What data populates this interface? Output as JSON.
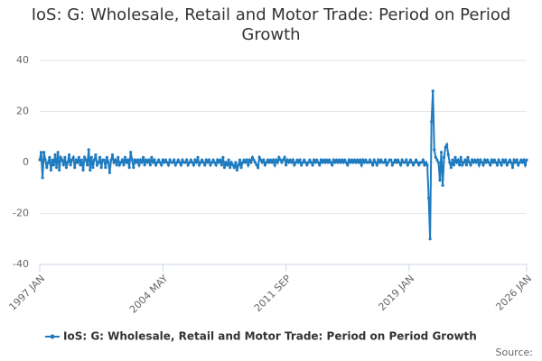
{
  "chart_data": {
    "type": "line",
    "title": "IoS: G: Wholesale, Retail and Motor Trade: Period on Period Growth",
    "source": "Source:",
    "categories": [
      "1997 JAN",
      null,
      null,
      null,
      null,
      null,
      null,
      null,
      null,
      null,
      null,
      null,
      null,
      null,
      null,
      null,
      null,
      null,
      null,
      null,
      null,
      null,
      null,
      null,
      null,
      null,
      null,
      null,
      null,
      null,
      null,
      null,
      null,
      null,
      null,
      null,
      null,
      null,
      null,
      null,
      null,
      null,
      null,
      null,
      null,
      null,
      null,
      null,
      null,
      null,
      null,
      null,
      null,
      null,
      null,
      null,
      null,
      null,
      null,
      null,
      null,
      null,
      null,
      null,
      null,
      null,
      null,
      null,
      null,
      null,
      null,
      null,
      null,
      null,
      null,
      null,
      null,
      null,
      null,
      null,
      null,
      null,
      null,
      null,
      null,
      null,
      null,
      null,
      "2004 MAY",
      null,
      null,
      null,
      null,
      null,
      null,
      null,
      null,
      null,
      null,
      null,
      null,
      null,
      null,
      null,
      null,
      null,
      null,
      null,
      null,
      null,
      null,
      null,
      null,
      null,
      null,
      null,
      null,
      null,
      null,
      null,
      null,
      null,
      null,
      null,
      null,
      null,
      null,
      null,
      null,
      null,
      null,
      null,
      null,
      null,
      null,
      null,
      null,
      null,
      null,
      null,
      null,
      null,
      null,
      null,
      null,
      null,
      null,
      null,
      null,
      null,
      null,
      null,
      null,
      null,
      null,
      null,
      null,
      null,
      null,
      null,
      null,
      null,
      null,
      null,
      null,
      null,
      null,
      null,
      null,
      null,
      null,
      null,
      null,
      null,
      null,
      null,
      "2011 SEP",
      null,
      null,
      null,
      null,
      null,
      null,
      null,
      null,
      null,
      null,
      null,
      null,
      null,
      null,
      null,
      null,
      null,
      null,
      null,
      null,
      null,
      null,
      null,
      null,
      null,
      null,
      null,
      null,
      null,
      null,
      null,
      null,
      null,
      null,
      null,
      null,
      null,
      null,
      null,
      null,
      null,
      null,
      null,
      null,
      null,
      null,
      null,
      null,
      null,
      null,
      null,
      null,
      null,
      null,
      null,
      null,
      null,
      null,
      null,
      null,
      null,
      null,
      null,
      null,
      null,
      null,
      null,
      null,
      null,
      null,
      null,
      null,
      null,
      null,
      null,
      null,
      null,
      null,
      null,
      null,
      null,
      null,
      null,
      null,
      null,
      null,
      null,
      "2019 JAN",
      null,
      null,
      null,
      null,
      null,
      null,
      null,
      null,
      null,
      null,
      null,
      null,
      null,
      null,
      null,
      null,
      null,
      null,
      null,
      null,
      null,
      null,
      null,
      null,
      null,
      null,
      null,
      null,
      null,
      null,
      null,
      null,
      null,
      null,
      null,
      null,
      null,
      null,
      null,
      null,
      null,
      null,
      null,
      null,
      null,
      null,
      null,
      null,
      null,
      null,
      null,
      null,
      null,
      null,
      null,
      null,
      null,
      null,
      null,
      null,
      null,
      null,
      null,
      null,
      null,
      null,
      null,
      null,
      null,
      null,
      null,
      null,
      null,
      null,
      null,
      null,
      null,
      null,
      null,
      null,
      null,
      null,
      null,
      "2026 JAN"
    ],
    "series": [
      {
        "name": "IoS: G: Wholesale, Retail and Motor Trade: Period on Period Growth",
        "color": "#1f7bbf",
        "values": [
          1,
          4,
          -6,
          4,
          1,
          -2,
          0,
          2,
          -3,
          1,
          -1,
          3,
          -2,
          4,
          -3,
          2,
          1,
          -1,
          2,
          -2,
          0,
          3,
          -1,
          1,
          2,
          -2,
          1,
          0,
          2,
          -1,
          1,
          -3,
          2,
          1,
          -1,
          5,
          -3,
          2,
          -2,
          1,
          3,
          -1,
          0,
          2,
          -2,
          1,
          1,
          -2,
          2,
          0,
          -4,
          1,
          3,
          0,
          1,
          -1,
          2,
          -1,
          0,
          1,
          -1,
          2,
          0,
          1,
          -2,
          4,
          1,
          -2,
          1,
          0,
          1,
          -1,
          1,
          0,
          2,
          -1,
          1,
          0,
          1,
          -1,
          2,
          0,
          1,
          -1,
          0,
          1,
          0,
          -1,
          1,
          0,
          1,
          0,
          -1,
          1,
          0,
          0,
          1,
          -1,
          0,
          1,
          0,
          -1,
          1,
          0,
          0,
          1,
          -1,
          0,
          1,
          0,
          -1,
          1,
          0,
          2,
          -1,
          0,
          1,
          0,
          -1,
          1,
          0,
          1,
          -1,
          0,
          1,
          0,
          -1,
          1,
          0,
          1,
          -1,
          2,
          -2,
          0,
          -1,
          1,
          -2,
          0,
          -1,
          -2,
          0,
          -3,
          -1,
          1,
          -2,
          0,
          1,
          0,
          1,
          -1,
          1,
          0,
          2,
          1,
          0,
          -1,
          -2,
          2,
          1,
          0,
          1,
          -1,
          0,
          1,
          0,
          1,
          0,
          1,
          -1,
          1,
          0,
          2,
          1,
          0,
          1,
          2,
          -1,
          1,
          0,
          1,
          0,
          1,
          -1,
          0,
          1,
          0,
          1,
          -1,
          0,
          1,
          0,
          -1,
          0,
          1,
          0,
          -1,
          1,
          0,
          1,
          0,
          -1,
          1,
          0,
          1,
          0,
          1,
          0,
          1,
          0,
          -1,
          1,
          0,
          1,
          0,
          1,
          0,
          1,
          0,
          1,
          0,
          -1,
          1,
          0,
          1,
          0,
          1,
          0,
          1,
          0,
          1,
          -1,
          1,
          0,
          1,
          0,
          0,
          1,
          0,
          -1,
          1,
          0,
          -1,
          1,
          0,
          1,
          0,
          0,
          1,
          -1,
          0,
          1,
          1,
          -1,
          0,
          1,
          0,
          1,
          0,
          -1,
          1,
          0,
          0,
          1,
          -1,
          0,
          1,
          0,
          -1,
          0,
          1,
          0,
          -1,
          0,
          0,
          1,
          -1,
          0,
          -1,
          -14,
          -30,
          16,
          28,
          5,
          2,
          1,
          0,
          -7,
          4,
          -9,
          2,
          6,
          7,
          3,
          0,
          -2,
          1,
          -1,
          2,
          0,
          1,
          -1,
          2,
          -1,
          0,
          1,
          -1,
          2,
          0,
          -1,
          1,
          0,
          1,
          0,
          1,
          -1,
          1,
          0,
          -1,
          1,
          0,
          1,
          0,
          -1,
          1,
          0,
          1,
          0,
          -1,
          1,
          0,
          -1,
          1,
          0,
          1,
          -1,
          0,
          1,
          0,
          -2,
          1,
          0,
          1,
          -1,
          0,
          1,
          0,
          1,
          -1,
          1
        ]
      }
    ],
    "ylim": [
      -40,
      40
    ],
    "yticks": [
      -40,
      -20,
      0,
      20,
      40
    ],
    "grid": true,
    "legend": "bottom"
  }
}
